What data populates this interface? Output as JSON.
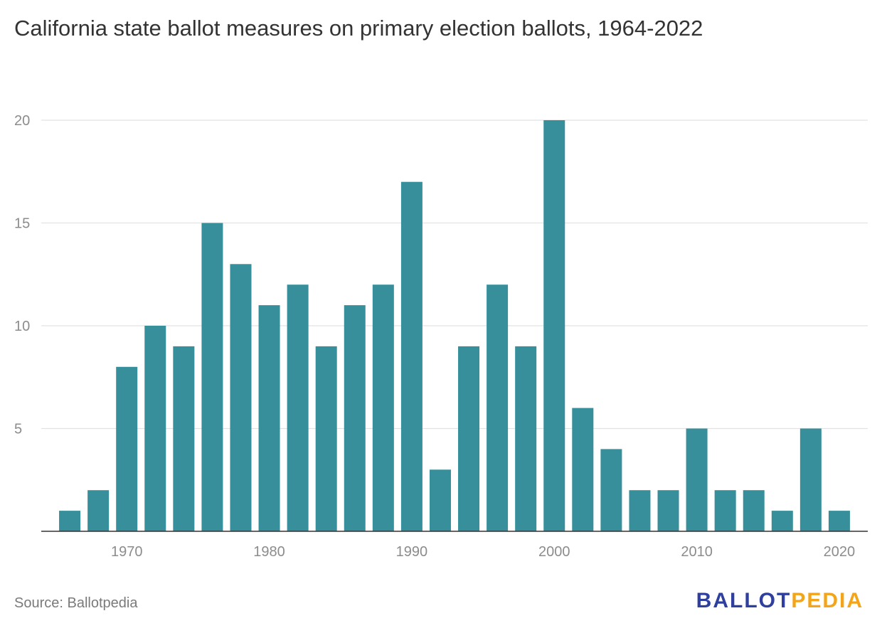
{
  "title": "California state ballot measures on primary election ballots, 1964-2022",
  "source": "Source: Ballotpedia",
  "logo": {
    "part1": "BALLOT",
    "part2": "PEDIA"
  },
  "colors": {
    "bar": "#368f9a",
    "grid": "#e2e2e2",
    "axis": "#333333",
    "tick": "#8c8c8c",
    "logo_blue": "#2e3f9e",
    "logo_orange": "#f2a51a"
  },
  "chart_data": {
    "type": "bar",
    "x": [
      1966,
      1968,
      1970,
      1972,
      1974,
      1976,
      1978,
      1980,
      1982,
      1984,
      1986,
      1988,
      1990,
      1992,
      1994,
      1996,
      1998,
      2000,
      2002,
      2004,
      2006,
      2008,
      2010,
      2012,
      2014,
      2016,
      2018,
      2020
    ],
    "values": [
      1,
      2,
      8,
      10,
      9,
      15,
      13,
      11,
      12,
      9,
      11,
      12,
      17,
      3,
      9,
      12,
      9,
      20,
      6,
      4,
      2,
      2,
      5,
      2,
      2,
      1,
      5,
      1
    ],
    "xticks": [
      1970,
      1980,
      1990,
      2000,
      2010,
      2020
    ],
    "yticks": [
      5,
      10,
      15,
      20
    ],
    "ylim": [
      0,
      20
    ],
    "xlim": [
      1964,
      2022
    ],
    "grid": true,
    "legend": "none"
  }
}
